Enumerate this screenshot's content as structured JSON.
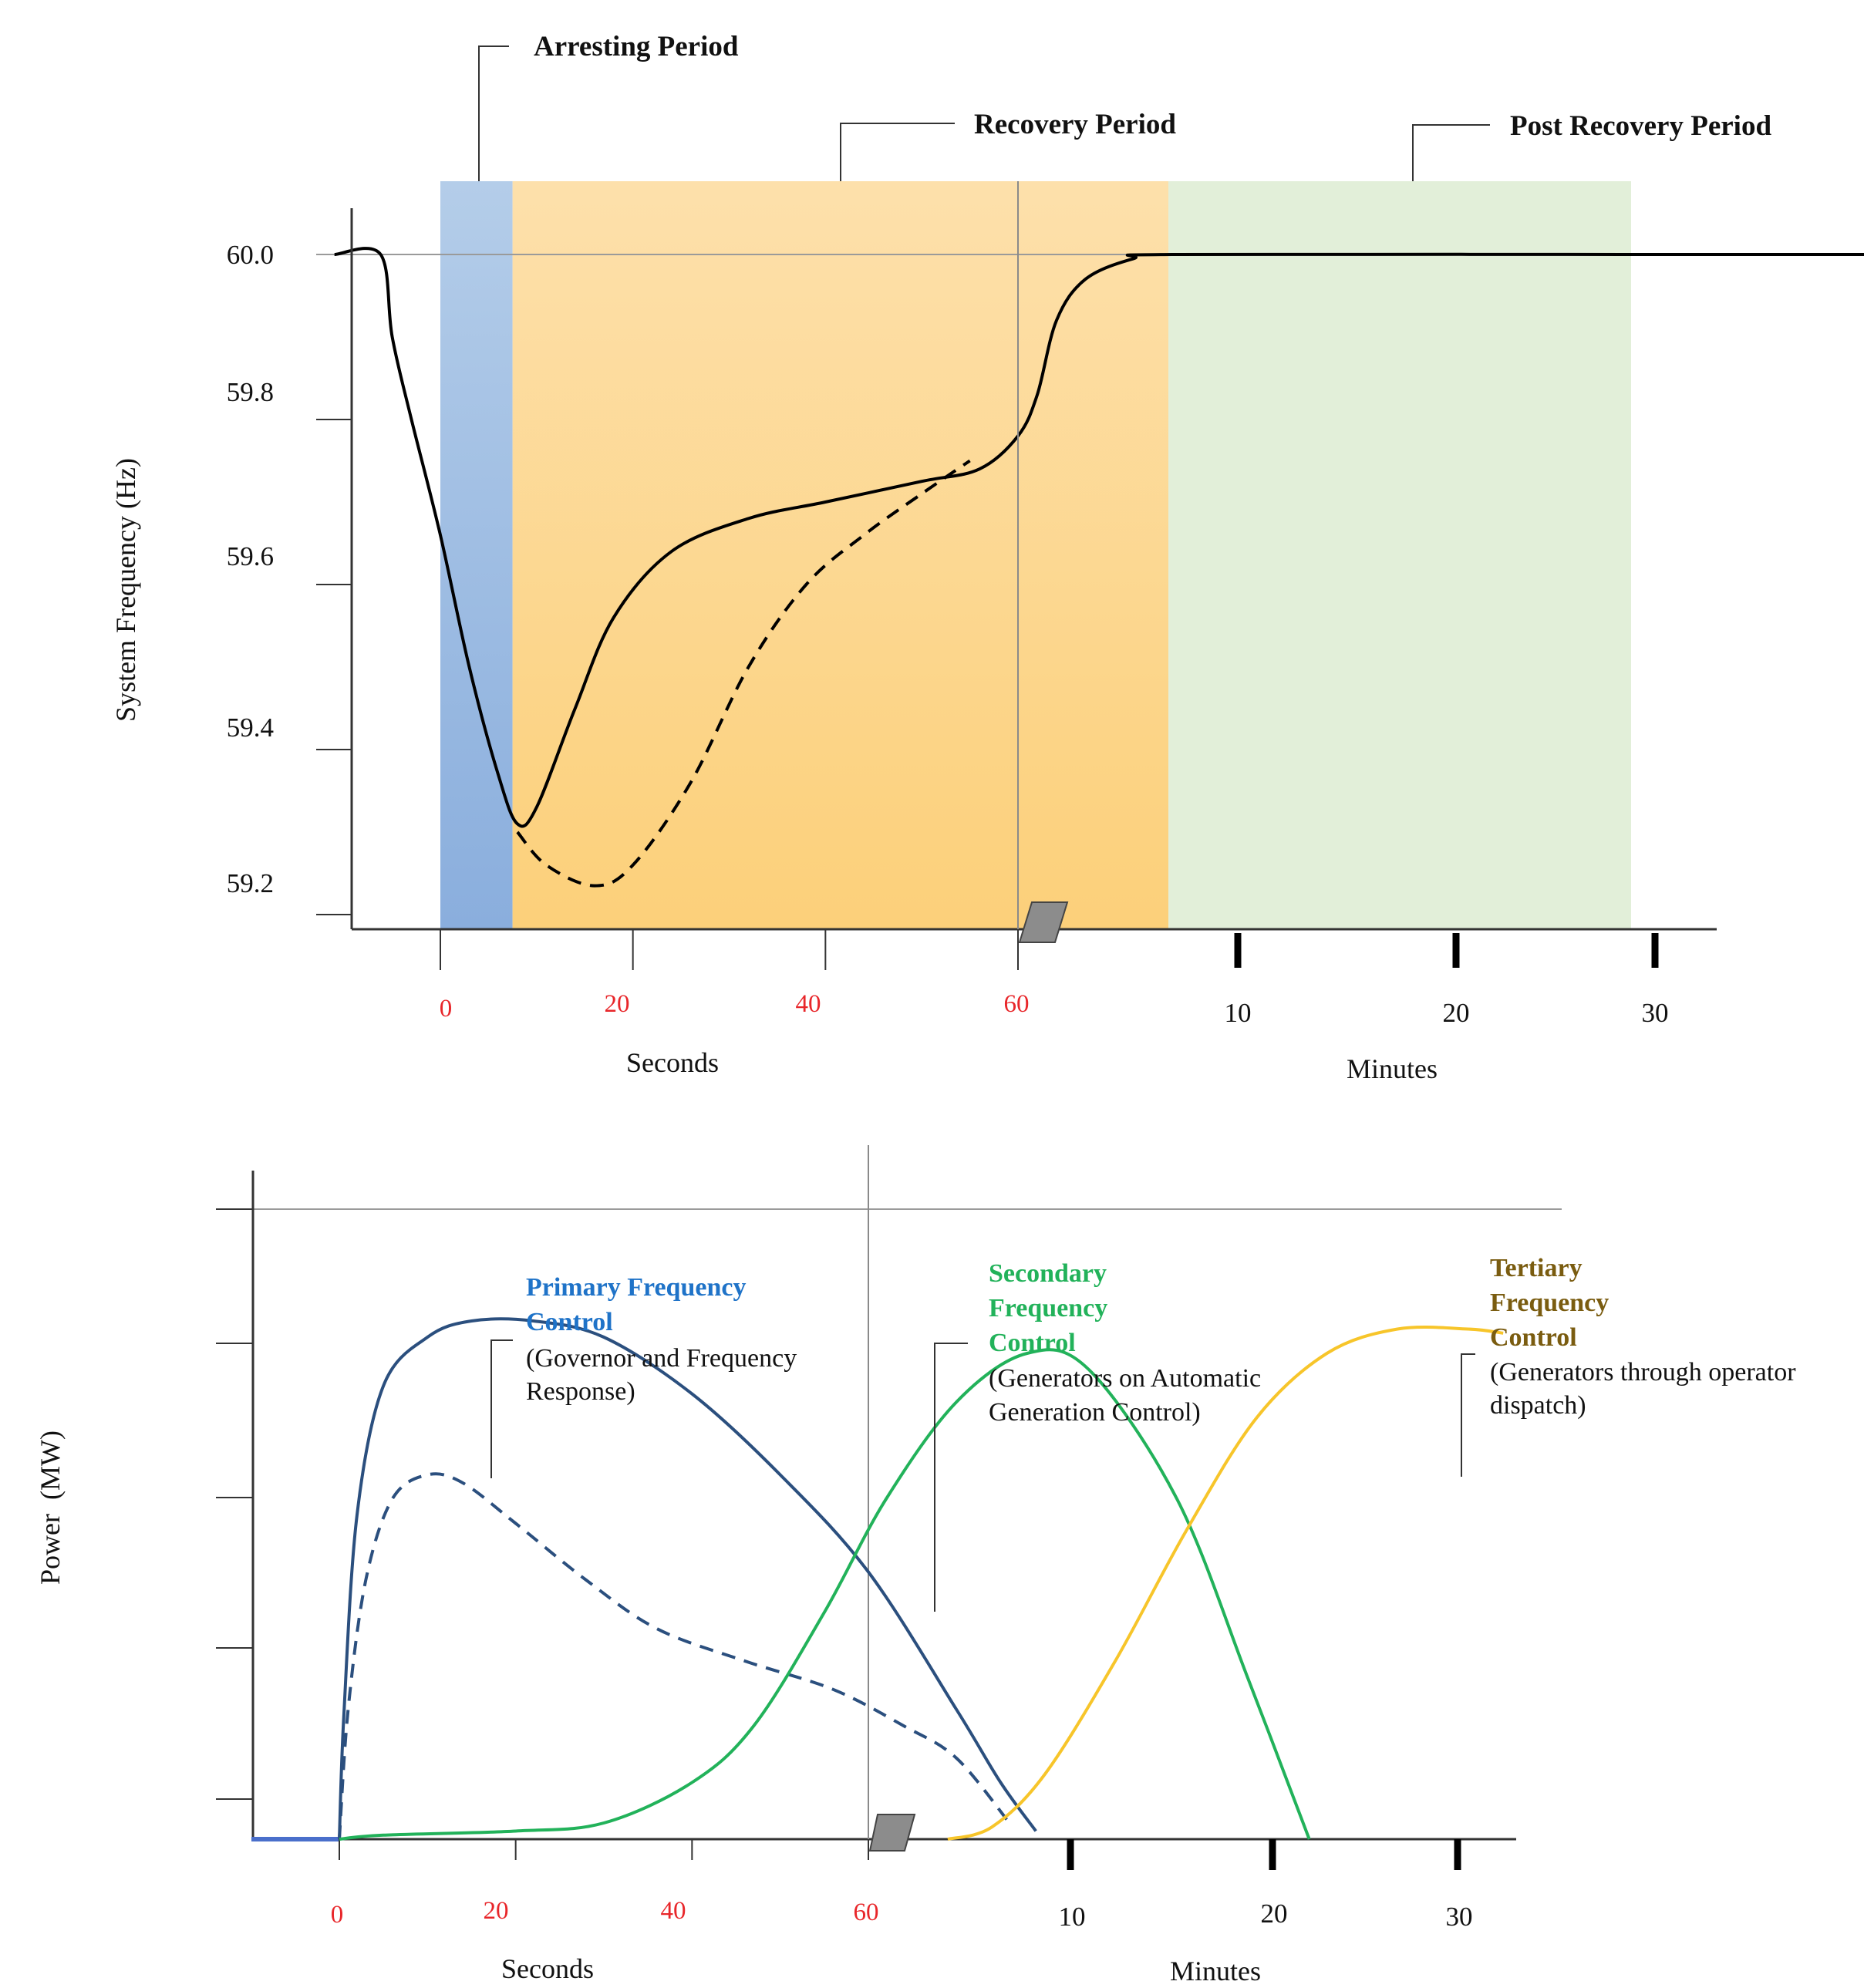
{
  "colors": {
    "arresting_band": "#9dbbe3",
    "recovery_band": "#fcd27e",
    "post_recovery_band": "#e2efd9",
    "frequency_line": "#000000",
    "primary": "#2b4f7e",
    "primary_title": "#1f73c8",
    "secondary": "#22b25a",
    "tertiary": "#f7c52a",
    "tertiary_title": "#7a5c10",
    "seconds_ticks": "#e8262a"
  },
  "chart_data": [
    {
      "type": "line",
      "title": "",
      "ylabel": "System Frequency (Hz)",
      "ylim": [
        59.15,
        60.05
      ],
      "yticks": [
        "60.0",
        "59.8",
        "59.6",
        "59.4",
        "59.2"
      ],
      "seconds_axis": {
        "label": "Seconds",
        "ticks": [
          "0",
          "20",
          "40",
          "60"
        ]
      },
      "minutes_axis": {
        "label": "Minutes",
        "ticks": [
          "10",
          "20",
          "30"
        ]
      },
      "periods": [
        {
          "name": "Arresting Period",
          "from_s": 0,
          "to_s": 7.5
        },
        {
          "name": "Recovery Period",
          "from_s": 7.5,
          "to_min": 0.0
        },
        {
          "name": "Post Recovery Period",
          "from_min": 0.0,
          "to_min": 30
        }
      ],
      "series": [
        {
          "name": "frequency-with-response",
          "style": "solid",
          "points": [
            [
              -11,
              60.0
            ],
            [
              -6.2,
              60.0
            ],
            [
              -5,
              59.9
            ],
            [
              -3,
              59.8
            ],
            [
              0,
              59.66
            ],
            [
              3,
              59.5
            ],
            [
              6,
              59.37
            ],
            [
              8,
              59.31
            ],
            [
              10,
              59.33
            ],
            [
              14,
              59.45
            ],
            [
              18,
              59.56
            ],
            [
              24,
              59.64
            ],
            [
              32,
              59.68
            ],
            [
              40,
              59.7
            ],
            [
              50,
              59.725
            ],
            [
              56,
              59.74
            ],
            [
              60,
              59.78
            ],
            [
              62,
              59.83
            ],
            [
              64,
              59.92
            ],
            [
              67,
              59.97
            ],
            [
              72,
              59.995
            ],
            [
              76,
              60.0
            ],
            [
              120,
              60.0
            ],
            [
              165,
              60.0
            ]
          ]
        },
        {
          "name": "frequency-without-response",
          "style": "dashed",
          "points": [
            [
              8,
              59.3
            ],
            [
              11,
              59.26
            ],
            [
              16,
              59.235
            ],
            [
              20,
              59.26
            ],
            [
              26,
              59.36
            ],
            [
              32,
              59.5
            ],
            [
              38,
              59.6
            ],
            [
              44,
              59.66
            ],
            [
              50,
              59.71
            ],
            [
              55,
              59.75
            ]
          ]
        }
      ]
    },
    {
      "type": "line",
      "title": "",
      "ylabel": "Power  (MW)",
      "ylim": [
        0,
        100
      ],
      "seconds_axis": {
        "label": "Seconds",
        "ticks": [
          "0",
          "20",
          "40",
          "60"
        ]
      },
      "minutes_axis": {
        "label": "Minutes",
        "ticks": [
          "10",
          "20",
          "30"
        ]
      },
      "series": [
        {
          "name": "Primary Frequency Control",
          "style": "solid",
          "points": [
            [
              0,
              0
            ],
            [
              0.5,
              15
            ],
            [
              2,
              40
            ],
            [
              5,
              56
            ],
            [
              10,
              62
            ],
            [
              15,
              64
            ],
            [
              22,
              64
            ],
            [
              30,
              62
            ],
            [
              40,
              55
            ],
            [
              50,
              45
            ],
            [
              60,
              33
            ],
            [
              70,
              16
            ],
            [
              75,
              7
            ],
            [
              79,
              1
            ]
          ]
        },
        {
          "name": "Primary Frequency Control (dashed)",
          "style": "dashed",
          "points": [
            [
              0,
              0
            ],
            [
              1,
              16
            ],
            [
              3,
              32
            ],
            [
              6,
              42
            ],
            [
              10,
              45
            ],
            [
              14,
              44
            ],
            [
              20,
              39
            ],
            [
              28,
              32
            ],
            [
              36,
              26
            ],
            [
              46,
              22
            ],
            [
              56,
              18.5
            ],
            [
              64,
              14
            ],
            [
              70,
              10
            ],
            [
              76,
              2
            ]
          ]
        },
        {
          "name": "Secondary Frequency Control",
          "style": "solid",
          "points": [
            [
              0,
              0
            ],
            [
              5,
              0.5
            ],
            [
              20,
              1
            ],
            [
              30,
              2
            ],
            [
              40,
              7
            ],
            [
              47,
              14
            ],
            [
              55,
              28
            ],
            [
              62,
              42
            ],
            [
              70,
              54
            ],
            [
              78,
              60
            ],
            [
              85,
              58
            ],
            [
              95,
              42
            ],
            [
              103,
              20
            ],
            [
              110,
              0
            ]
          ]
        },
        {
          "name": "Tertiary Frequency Control",
          "style": "solid",
          "points": [
            [
              69,
              0
            ],
            [
              74,
              1.5
            ],
            [
              80,
              8
            ],
            [
              88,
              22
            ],
            [
              96,
              38
            ],
            [
              104,
              52
            ],
            [
              112,
              60
            ],
            [
              120,
              63
            ],
            [
              128,
              63
            ],
            [
              132,
              62.5
            ]
          ]
        }
      ],
      "legend": [
        {
          "title_lines": [
            "Primary Frequency",
            "Control"
          ],
          "desc_lines": [
            "(Governor and Frequency",
            "Response)"
          ]
        },
        {
          "title_lines": [
            "Secondary",
            "Frequency",
            "Control"
          ],
          "desc_lines": [
            "(Generators on Automatic",
            "Generation Control)"
          ]
        },
        {
          "title_lines": [
            "Tertiary",
            "Frequency",
            "Control"
          ],
          "desc_lines": [
            "(Generators through operator",
            "dispatch)"
          ]
        }
      ]
    }
  ]
}
